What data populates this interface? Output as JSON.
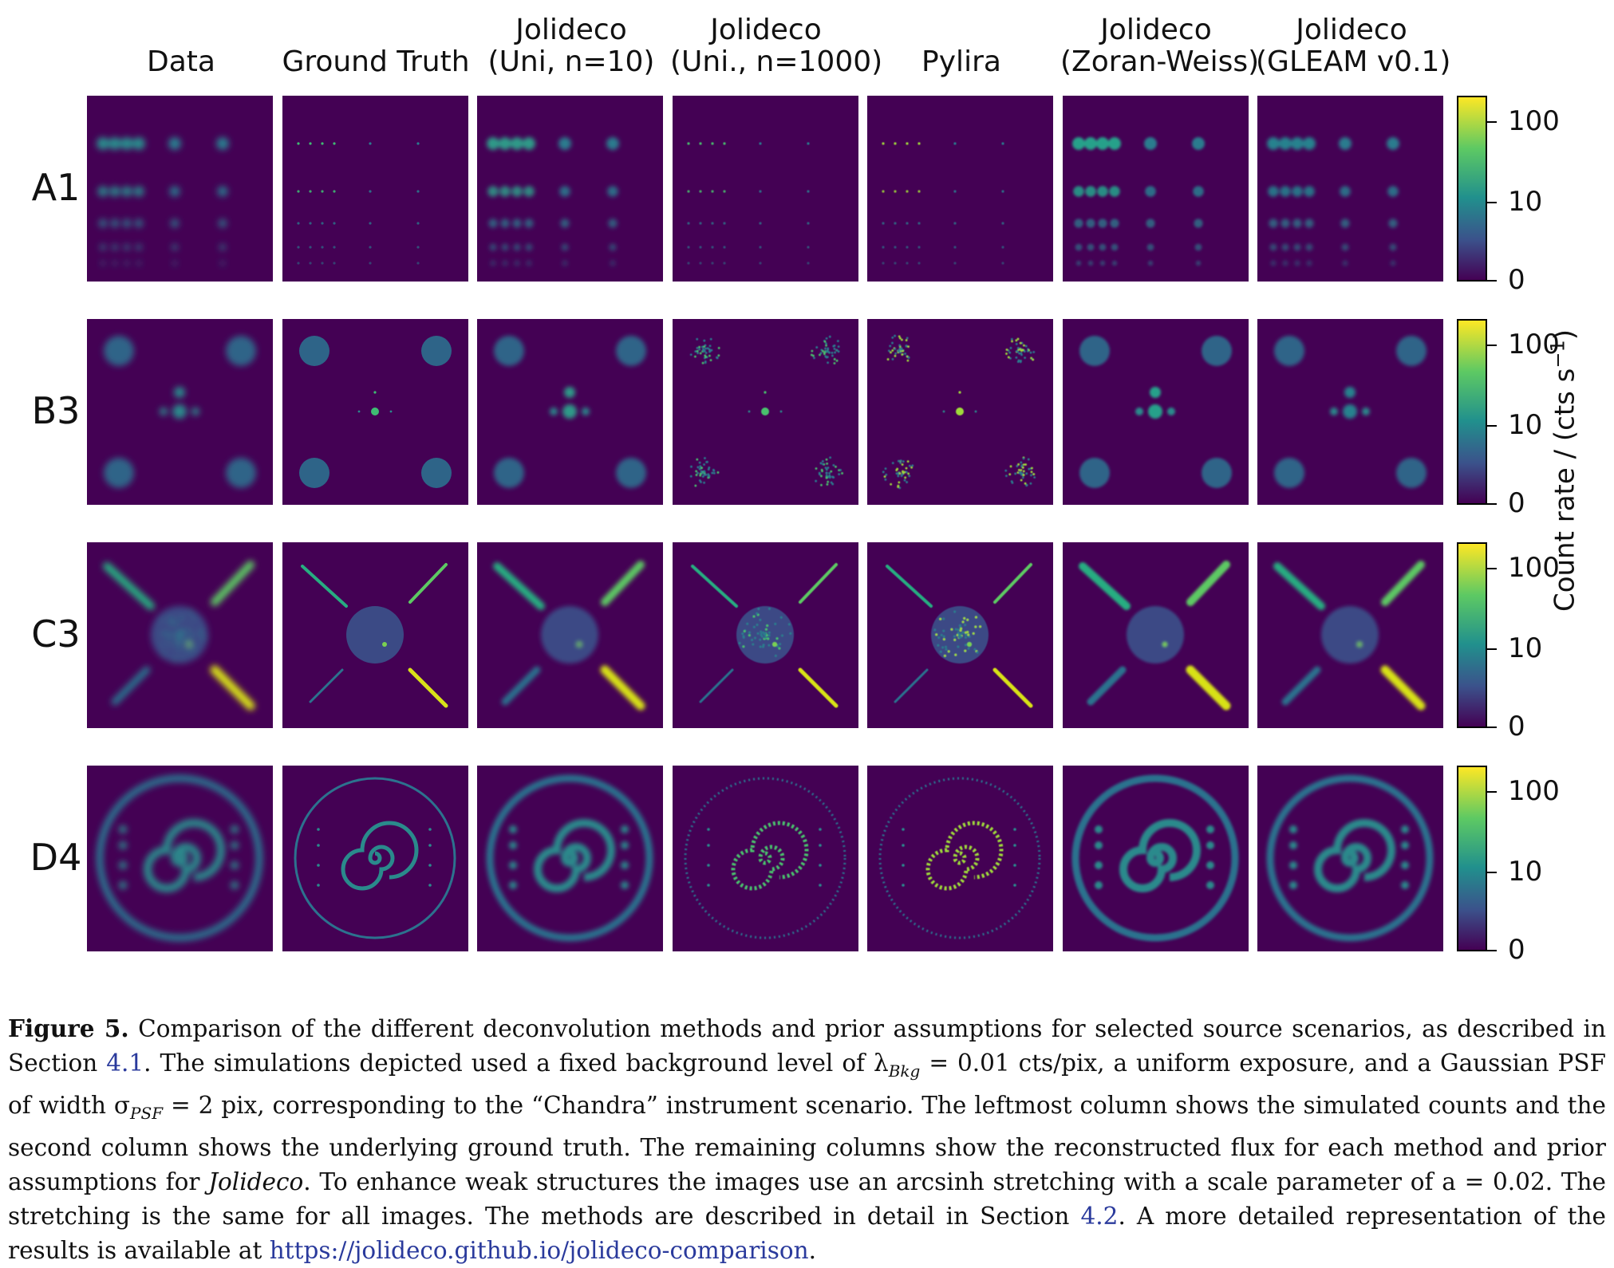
{
  "columns": [
    {
      "line1": "",
      "line2": "Data"
    },
    {
      "line1": "",
      "line2": "Ground Truth"
    },
    {
      "line1": "Jolideco",
      "line2": "(Uni, n=10)"
    },
    {
      "line1": "Jolideco",
      "line2": "(Uni., n=1000)"
    },
    {
      "line1": "",
      "line2": "Pylira"
    },
    {
      "line1": "Jolideco",
      "line2": "(Zoran-Weiss)"
    },
    {
      "line1": "Jolideco",
      "line2": "(GLEAM v0.1)"
    }
  ],
  "rows": [
    "A1",
    "B3",
    "C3",
    "D4"
  ],
  "colorbar": {
    "ticks": [
      "100",
      "10",
      "0"
    ],
    "label": "Count rate / (cts s",
    "label_sup": "−1",
    "label_end": ")",
    "colormap": "viridis",
    "colors": [
      "#440154",
      "#3b528b",
      "#21908d",
      "#5dc963",
      "#fde725"
    ]
  },
  "caption": {
    "label": "Figure 5.",
    "t1": " Comparison of the different deconvolution methods and prior assumptions for selected source scenarios, as described in Section ",
    "ref1": "4.1",
    "t2": ". The simulations depicted used a fixed background level of λ",
    "sub1": "Bkg",
    "t3": " = 0.01 cts/pix, a uniform exposure, and a Gaussian PSF of width σ",
    "sub2": "PSF",
    "t4": " = 2 pix, corresponding to the “Chandra” instrument scenario. The leftmost column shows the simulated counts and the second column shows the underlying ground truth. The remaining columns show the reconstructed flux for each method and prior assumptions for ",
    "em": "Jolideco",
    "t5": ". To enhance weak structures the images use an arcsinh stretching with a scale parameter of a = 0.02. The stretching is the same for all images. The methods are described in detail in Section ",
    "ref2": "4.2",
    "t6": ". A more detailed representation of the results is available at ",
    "url": "https://jolideco.github.io/jolideco-comparison",
    "t7": "."
  }
}
